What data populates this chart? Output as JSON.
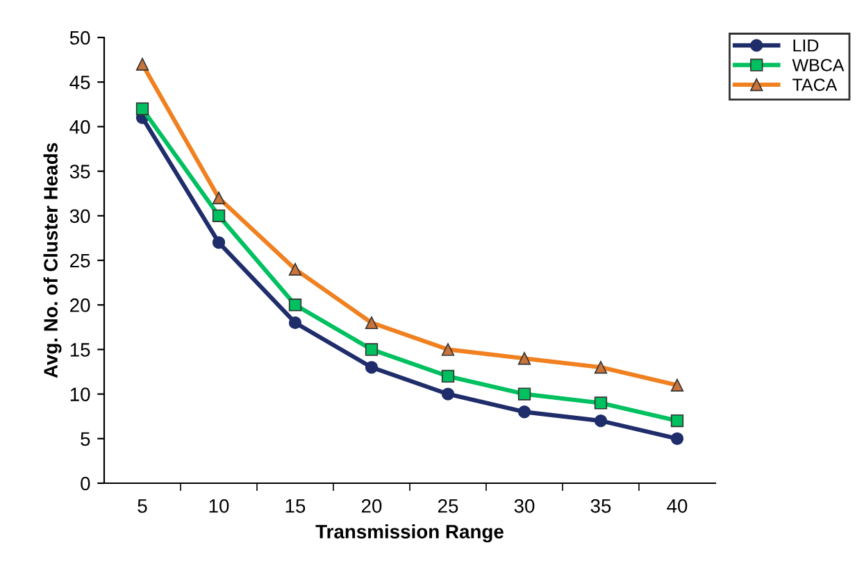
{
  "chart_data": {
    "type": "line",
    "xlabel": "Transmission Range",
    "ylabel": "Avg. No. of Cluster Heads",
    "categories": [
      "5",
      "10",
      "15",
      "20",
      "25",
      "30",
      "35",
      "40"
    ],
    "series": [
      {
        "name": "LID",
        "color": "#1f2d6b",
        "marker": "circle",
        "values": [
          41,
          27,
          18,
          13,
          10,
          8,
          7,
          5
        ]
      },
      {
        "name": "WBCA",
        "color": "#00c060",
        "marker": "square",
        "values": [
          42,
          30,
          20,
          15,
          12,
          10,
          9,
          7
        ]
      },
      {
        "name": "TACA",
        "color": "#f08020",
        "marker": "triangle",
        "values": [
          47,
          32,
          24,
          18,
          15,
          14,
          13,
          11
        ]
      }
    ],
    "ylim": [
      0,
      50
    ],
    "yticks": [
      0,
      5,
      10,
      15,
      20,
      25,
      30,
      35,
      40,
      45,
      50
    ],
    "grid": false,
    "legend": "top right",
    "line_style": "solid"
  }
}
